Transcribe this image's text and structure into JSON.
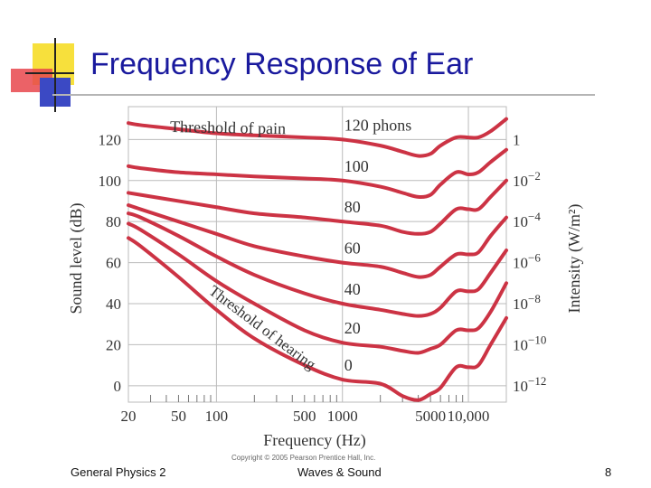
{
  "slide": {
    "title": "Frequency Response of Ear",
    "footer_left": "General Physics 2",
    "footer_center": "Waves & Sound",
    "footer_right": "8",
    "copyright": "Copyright © 2005 Pearson Prentice Hall, Inc."
  },
  "colors": {
    "title": "#1a1a9e",
    "curve": "#cc3344",
    "deco_yellow": "#f7e03c",
    "deco_red": "#e8474c",
    "deco_blue": "#3b49c4",
    "grid": "#bbbbbb"
  },
  "chart_data": {
    "type": "line",
    "xlabel": "Frequency (Hz)",
    "ylabel": "Sound level (dB)",
    "y2label": "Intensity (W/m²)",
    "xscale": "log",
    "xlim": [
      20,
      20000
    ],
    "ylim": [
      -8,
      136
    ],
    "x_ticks": [
      {
        "value": 20,
        "label": "20"
      },
      {
        "value": 50,
        "label": "50"
      },
      {
        "value": 100,
        "label": "100"
      },
      {
        "value": 500,
        "label": "500"
      },
      {
        "value": 1000,
        "label": "1000"
      },
      {
        "value": 5000,
        "label": "5000"
      },
      {
        "value": 10000,
        "label": "10,000"
      }
    ],
    "y_ticks": [
      0,
      20,
      40,
      60,
      80,
      100,
      120
    ],
    "y2_ticks": [
      {
        "db": 120,
        "base": "1",
        "exp": ""
      },
      {
        "db": 100,
        "base": "10",
        "exp": "−2"
      },
      {
        "db": 80,
        "base": "10",
        "exp": "−4"
      },
      {
        "db": 60,
        "base": "10",
        "exp": "−6"
      },
      {
        "db": 40,
        "base": "10",
        "exp": "−8"
      },
      {
        "db": 20,
        "base": "10",
        "exp": "−10"
      },
      {
        "db": 0,
        "base": "10",
        "exp": "−12"
      }
    ],
    "x": [
      20,
      25,
      50,
      100,
      200,
      500,
      1000,
      2000,
      3000,
      4000,
      5000,
      6000,
      8000,
      10000,
      12000,
      15000,
      20000
    ],
    "series": [
      {
        "label": "120 phons",
        "values": [
          128,
          127,
          125,
          123,
          122,
          121,
          120,
          117,
          114,
          112,
          113,
          117,
          121,
          121,
          121,
          124,
          130
        ]
      },
      {
        "label": "100",
        "values": [
          107,
          106,
          104,
          103,
          102,
          101,
          100,
          97,
          94,
          92,
          93,
          98,
          104,
          103,
          104,
          109,
          115
        ]
      },
      {
        "label": "80",
        "values": [
          94,
          93,
          90,
          87,
          84,
          82,
          80,
          78,
          75,
          74,
          75,
          79,
          86,
          86,
          86,
          92,
          100
        ]
      },
      {
        "label": "60",
        "values": [
          88,
          86,
          80,
          74,
          68,
          63,
          60,
          58,
          55,
          53,
          54,
          58,
          64,
          64,
          65,
          73,
          82
        ]
      },
      {
        "label": "40",
        "values": [
          84,
          82,
          73,
          63,
          54,
          45,
          40,
          37,
          35,
          34,
          35,
          38,
          46,
          46,
          47,
          55,
          66
        ]
      },
      {
        "label": "20",
        "values": [
          79,
          76,
          64,
          51,
          40,
          27,
          21,
          19,
          17,
          16,
          18,
          20,
          27,
          27,
          28,
          36,
          50
        ]
      },
      {
        "label": "0",
        "values": [
          72,
          68,
          53,
          37,
          23,
          10,
          3,
          1,
          -5,
          -7,
          -4,
          -1,
          9,
          9,
          10,
          20,
          33
        ]
      }
    ],
    "annotations": {
      "pain": "Threshold of pain",
      "hearing": "Threshold of hearing"
    },
    "grid": true
  }
}
